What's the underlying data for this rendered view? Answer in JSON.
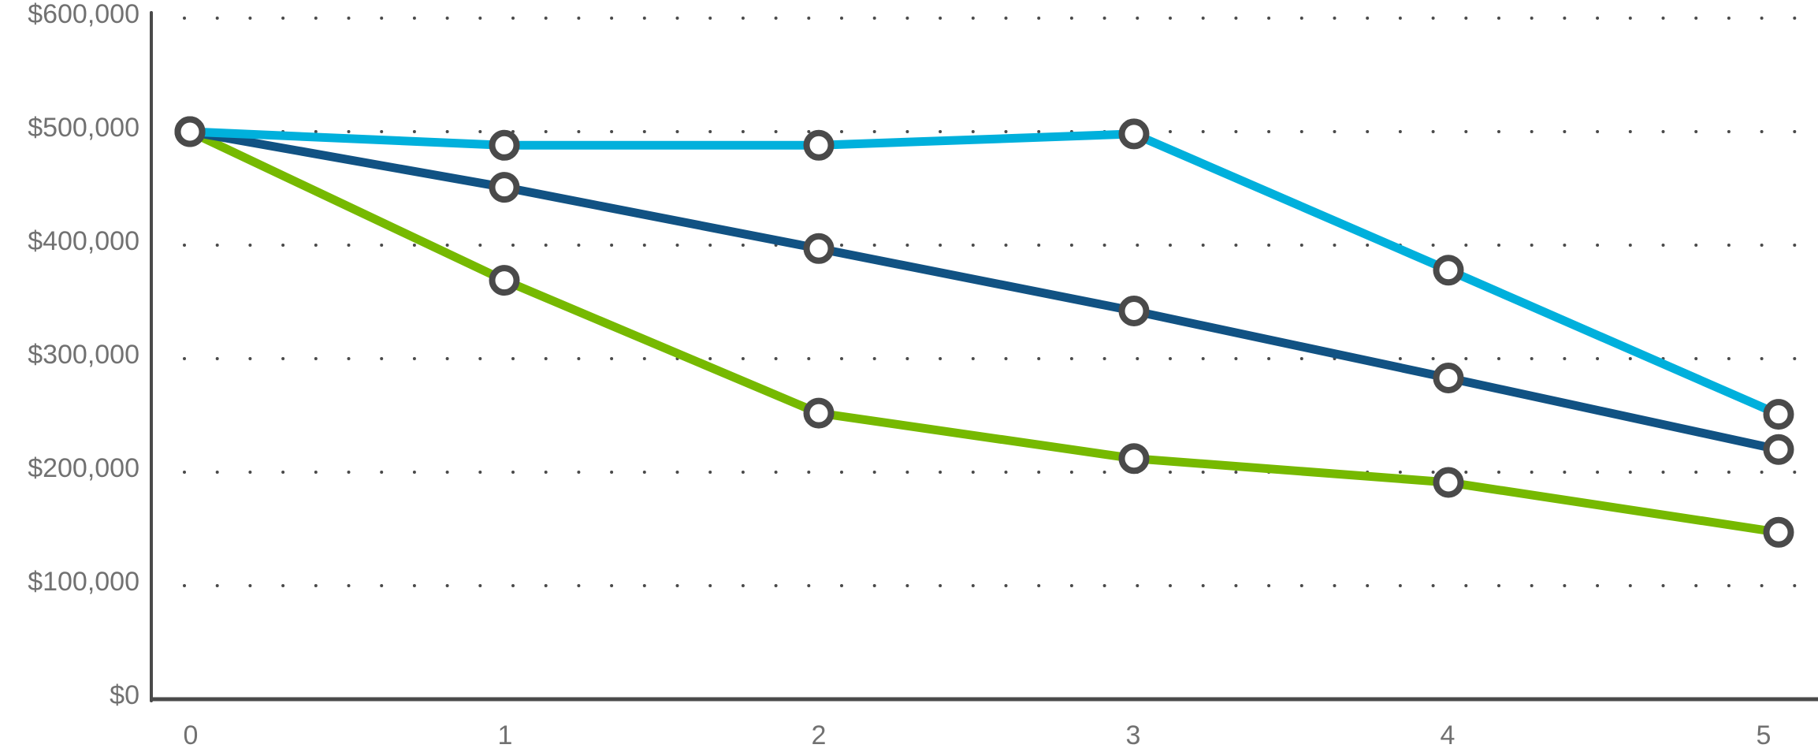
{
  "chart_data": {
    "type": "line",
    "title": "",
    "xlabel": "",
    "ylabel": "",
    "x": [
      0,
      1,
      2,
      3,
      4,
      5
    ],
    "categories": [
      "0",
      "1",
      "2",
      "3",
      "4",
      "5"
    ],
    "ylim": [
      0,
      600000
    ],
    "yticks": [
      0,
      100000,
      200000,
      300000,
      400000,
      500000,
      600000
    ],
    "ytick_labels": [
      "$0",
      "$100,000",
      "$200,000",
      "$300,000",
      "$400,000",
      "$500,000",
      "$600,000"
    ],
    "grid": "dotted horizontal",
    "legend": "none",
    "series": [
      {
        "name": "light-blue-series",
        "color": "#00b0dc",
        "values": [
          500000,
          488000,
          488000,
          498000,
          378000,
          251000
        ]
      },
      {
        "name": "dark-blue-series",
        "color": "#115283",
        "values": [
          500000,
          451000,
          397000,
          342000,
          283000,
          220000
        ]
      },
      {
        "name": "green-series",
        "color": "#76b900",
        "values": [
          500000,
          369000,
          252000,
          212000,
          191000,
          147000
        ]
      }
    ]
  },
  "style": {
    "axis_color": "#4a4a4a",
    "marker_ring_color": "#4a4a4a",
    "marker_fill": "#ffffff",
    "tick_label_color": "#717171"
  }
}
